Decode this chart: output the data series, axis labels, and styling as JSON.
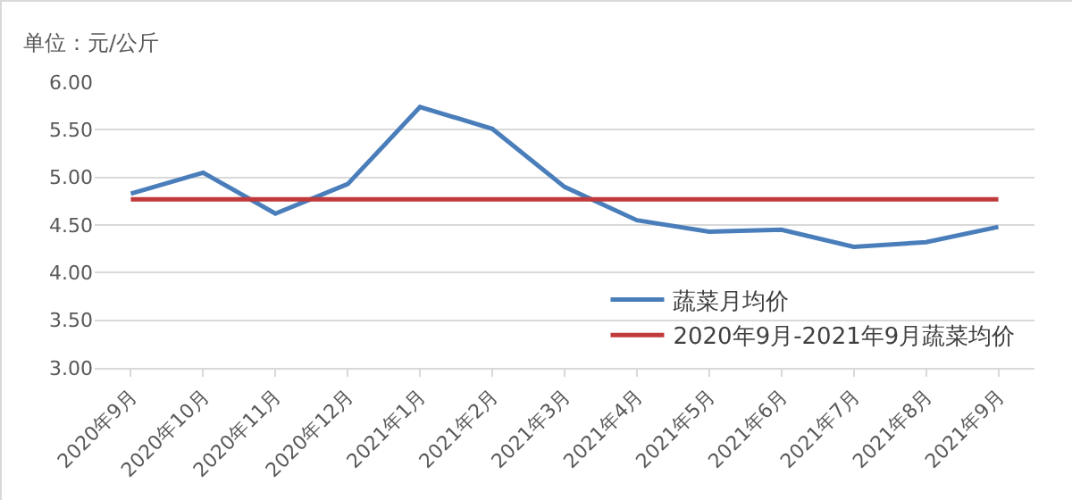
{
  "chart_data": {
    "type": "line",
    "ylabel": "单位：元/公斤",
    "categories": [
      "2020年9月",
      "2020年10月",
      "2020年11月",
      "2020年12月",
      "2021年1月",
      "2021年2月",
      "2021年3月",
      "2021年4月",
      "2021年5月",
      "2021年6月",
      "2021年7月",
      "2021年8月",
      "2021年9月"
    ],
    "series": [
      {
        "name": "蔬菜月均价",
        "color": "#4a7ebb",
        "values": [
          4.83,
          5.05,
          4.62,
          4.93,
          5.74,
          5.51,
          4.9,
          4.55,
          4.43,
          4.45,
          4.27,
          4.32,
          4.48
        ]
      },
      {
        "name": "2020年9月-2021年9月蔬菜均价",
        "color": "#c0393b",
        "values": [
          4.77,
          4.77,
          4.77,
          4.77,
          4.77,
          4.77,
          4.77,
          4.77,
          4.77,
          4.77,
          4.77,
          4.77,
          4.77
        ]
      }
    ],
    "ylim": [
      3,
      6
    ],
    "yticks": [
      {
        "value": 3,
        "label": "3.00"
      },
      {
        "value": 3.5,
        "label": "3.50"
      },
      {
        "value": 4,
        "label": "4.00"
      },
      {
        "value": 4.5,
        "label": "4.50"
      },
      {
        "value": 5,
        "label": "5.00"
      },
      {
        "value": 5.5,
        "label": "5.50"
      },
      {
        "value": 6,
        "label": "6.00"
      }
    ],
    "grid": "y",
    "legend": "bottom right",
    "marker": "none",
    "line_style": "solid"
  }
}
